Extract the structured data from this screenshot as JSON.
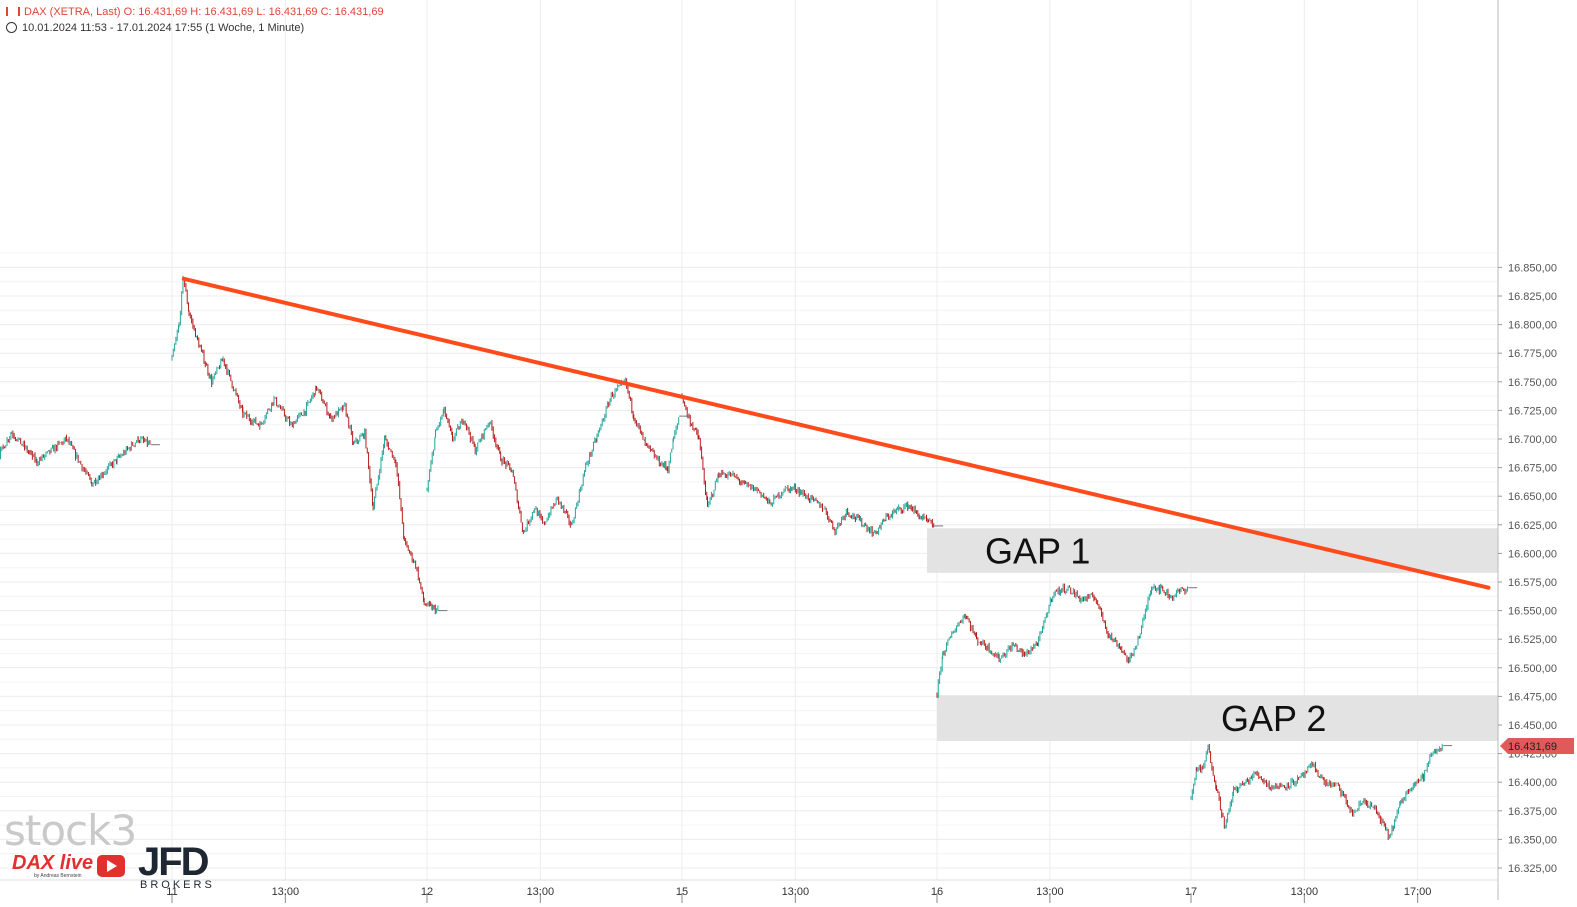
{
  "header": {
    "line1": "DAX (XETRA, Last)  O: 16.431,69  H: 16.431,69  L: 16.431,69  C: 16.431,69",
    "line2": "10.01.2024 11:53 - 17.01.2024 17:55   (1 Woche, 1 Minute)"
  },
  "logos": {
    "stock": "stock3",
    "dax": "DAX live",
    "dax_sub": "by Andreas Bernstein",
    "jfd": "JFD",
    "brokers": "BROKERS"
  },
  "colors": {
    "up": "#26a69a",
    "down": "#b71c1c",
    "trendline": "#ff4a1c",
    "gap": "#e3e3e3",
    "price_tag": "#e05a5a"
  },
  "chart_data": {
    "type": "candlestick",
    "title": "DAX (XETRA, Last)",
    "period": "10.01.2024 11:53 - 17.01.2024 17:55",
    "interval": "1 Woche, 1 Minute",
    "ylim": [
      16312.5,
      16862.5
    ],
    "y_ticks": [
      "16.325,00",
      "16.350,00",
      "16.375,00",
      "16.400,00",
      "16.425,00",
      "16.450,00",
      "16.475,00",
      "16.500,00",
      "16.525,00",
      "16.550,00",
      "16.575,00",
      "16.600,00",
      "16.625,00",
      "16.650,00",
      "16.675,00",
      "16.700,00",
      "16.725,00",
      "16.750,00",
      "16.775,00",
      "16.800,00",
      "16.825,00",
      "16.850,00"
    ],
    "x_ticks": [
      "13:00",
      "11",
      "13:00",
      "12",
      "13:00",
      "15",
      "13:00",
      "16",
      "13:00",
      "17",
      "13:00",
      "17:00"
    ],
    "last_price": 16431.69,
    "last_price_label": "16.431,69",
    "sessions": [
      {
        "day": "10.01",
        "points": [
          [
            11.9,
            16700
          ],
          [
            12.3,
            16715
          ],
          [
            12.8,
            16693
          ],
          [
            13.2,
            16718
          ],
          [
            13.6,
            16666
          ],
          [
            14.2,
            16706
          ],
          [
            14.8,
            16680
          ],
          [
            15.5,
            16700
          ],
          [
            16.1,
            16661
          ],
          [
            16.7,
            16682
          ],
          [
            17.2,
            16700
          ],
          [
            17.5,
            16695
          ]
        ]
      },
      {
        "day": "11.01",
        "points": [
          [
            9.0,
            16770
          ],
          [
            9.25,
            16800
          ],
          [
            9.4,
            16842
          ],
          [
            9.6,
            16810
          ],
          [
            9.9,
            16786
          ],
          [
            10.4,
            16750
          ],
          [
            10.8,
            16770
          ],
          [
            11.5,
            16722
          ],
          [
            12.1,
            16712
          ],
          [
            12.6,
            16735
          ],
          [
            13.2,
            16712
          ],
          [
            13.7,
            16725
          ],
          [
            14.1,
            16745
          ],
          [
            14.6,
            16718
          ],
          [
            15.1,
            16728
          ],
          [
            15.4,
            16695
          ],
          [
            15.8,
            16705
          ],
          [
            16.1,
            16640
          ],
          [
            16.5,
            16700
          ],
          [
            16.9,
            16680
          ],
          [
            17.2,
            16610
          ],
          [
            17.6,
            16590
          ],
          [
            17.9,
            16556
          ],
          [
            18.2,
            16552
          ],
          [
            18.4,
            16550
          ]
        ]
      },
      {
        "day": "12.01",
        "points": [
          [
            9.0,
            16655
          ],
          [
            9.3,
            16705
          ],
          [
            9.6,
            16725
          ],
          [
            9.9,
            16700
          ],
          [
            10.3,
            16718
          ],
          [
            10.7,
            16690
          ],
          [
            11.2,
            16716
          ],
          [
            11.6,
            16683
          ],
          [
            12.0,
            16672
          ],
          [
            12.4,
            16618
          ],
          [
            12.8,
            16640
          ],
          [
            13.1,
            16625
          ],
          [
            13.6,
            16648
          ],
          [
            14.1,
            16624
          ],
          [
            14.6,
            16676
          ],
          [
            15.0,
            16702
          ],
          [
            15.5,
            16738
          ],
          [
            16.0,
            16750
          ],
          [
            16.3,
            16720
          ],
          [
            16.7,
            16695
          ],
          [
            17.2,
            16680
          ],
          [
            17.5,
            16674
          ],
          [
            17.7,
            16700
          ],
          [
            17.9,
            16720
          ]
        ]
      },
      {
        "day": "15.01",
        "points": [
          [
            9.0,
            16738
          ],
          [
            9.2,
            16720
          ],
          [
            9.6,
            16700
          ],
          [
            9.9,
            16640
          ],
          [
            10.3,
            16670
          ],
          [
            10.8,
            16668
          ],
          [
            11.2,
            16660
          ],
          [
            11.7,
            16655
          ],
          [
            12.1,
            16643
          ],
          [
            12.6,
            16656
          ],
          [
            13.0,
            16657
          ],
          [
            13.5,
            16648
          ],
          [
            14.0,
            16640
          ],
          [
            14.4,
            16620
          ],
          [
            14.8,
            16637
          ],
          [
            15.3,
            16628
          ],
          [
            15.8,
            16617
          ],
          [
            16.2,
            16631
          ],
          [
            16.6,
            16638
          ],
          [
            17.0,
            16642
          ],
          [
            17.4,
            16632
          ],
          [
            17.7,
            16627
          ],
          [
            17.9,
            16624
          ]
        ]
      },
      {
        "day": "16.01",
        "points": [
          [
            9.0,
            16477
          ],
          [
            9.2,
            16512
          ],
          [
            9.6,
            16533
          ],
          [
            10.0,
            16547
          ],
          [
            10.4,
            16525
          ],
          [
            10.8,
            16518
          ],
          [
            11.2,
            16508
          ],
          [
            11.7,
            16520
          ],
          [
            12.1,
            16511
          ],
          [
            12.6,
            16523
          ],
          [
            13.1,
            16565
          ],
          [
            13.6,
            16570
          ],
          [
            14.1,
            16560
          ],
          [
            14.6,
            16562
          ],
          [
            15.1,
            16528
          ],
          [
            15.5,
            16518
          ],
          [
            15.8,
            16505
          ],
          [
            16.2,
            16530
          ],
          [
            16.6,
            16572
          ],
          [
            17.0,
            16568
          ],
          [
            17.3,
            16562
          ],
          [
            17.6,
            16567
          ],
          [
            17.9,
            16570
          ]
        ]
      },
      {
        "day": "17.01",
        "points": [
          [
            9.0,
            16385
          ],
          [
            9.2,
            16413
          ],
          [
            9.4,
            16410
          ],
          [
            9.6,
            16430
          ],
          [
            9.9,
            16395
          ],
          [
            10.2,
            16360
          ],
          [
            10.5,
            16393
          ],
          [
            10.9,
            16399
          ],
          [
            11.3,
            16408
          ],
          [
            11.8,
            16396
          ],
          [
            12.3,
            16397
          ],
          [
            12.8,
            16402
          ],
          [
            13.3,
            16415
          ],
          [
            13.7,
            16400
          ],
          [
            14.2,
            16396
          ],
          [
            14.7,
            16372
          ],
          [
            15.1,
            16384
          ],
          [
            15.5,
            16376
          ],
          [
            16.0,
            16352
          ],
          [
            16.4,
            16382
          ],
          [
            16.8,
            16398
          ],
          [
            17.2,
            16405
          ],
          [
            17.5,
            16425
          ],
          [
            17.9,
            16432
          ]
        ]
      }
    ],
    "trendline": {
      "from": [
        "11.01 09:25",
        16840
      ],
      "to": [
        "17.01 19:30",
        16570
      ],
      "color": "#ff4a1c"
    },
    "zones": [
      {
        "label": "GAP 1",
        "from": "16.01 09:00",
        "y": [
          16583,
          16622
        ]
      },
      {
        "label": "GAP 2",
        "from": "16.01 09:00",
        "y": [
          16436,
          16476
        ]
      }
    ]
  }
}
